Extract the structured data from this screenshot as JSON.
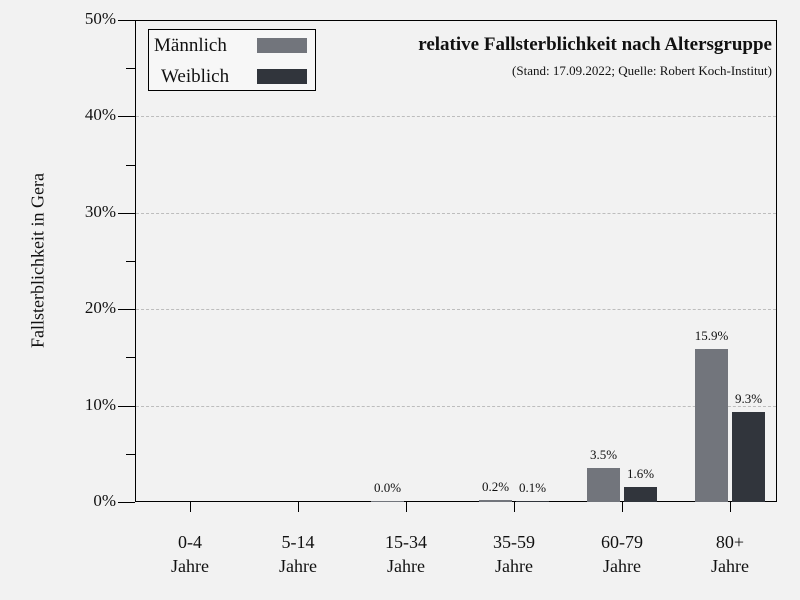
{
  "chart_data": {
    "type": "bar",
    "title": "relative Fallsterblichkeit nach Altersgruppe",
    "subtitle": "(Stand: 17.09.2022; Quelle: Robert Koch-Institut)",
    "xlabel": "",
    "ylabel": "Fallsterblichkeit in Gera",
    "ylim": [
      0,
      50
    ],
    "yticks": [
      "0%",
      "10%",
      "20%",
      "30%",
      "40%",
      "50%"
    ],
    "grid": "horizontal dashed",
    "legend_position": "top-left",
    "categories": [
      {
        "line1": "0-4",
        "line2": "Jahre"
      },
      {
        "line1": "5-14",
        "line2": "Jahre"
      },
      {
        "line1": "15-34",
        "line2": "Jahre"
      },
      {
        "line1": "35-59",
        "line2": "Jahre"
      },
      {
        "line1": "60-79",
        "line2": "Jahre"
      },
      {
        "line1": "80+",
        "line2": "Jahre"
      }
    ],
    "series": [
      {
        "name": "Männlich",
        "color": "#72757c",
        "values": [
          null,
          null,
          0.0,
          0.2,
          3.5,
          15.9
        ],
        "labels": [
          "",
          "",
          "0.0%",
          "0.2%",
          "3.5%",
          "15.9%"
        ]
      },
      {
        "name": "Weiblich",
        "color": "#31353c",
        "values": [
          null,
          null,
          null,
          0.1,
          1.6,
          9.3
        ],
        "labels": [
          "",
          "",
          "",
          "0.1%",
          "1.6%",
          "9.3%"
        ]
      }
    ]
  }
}
